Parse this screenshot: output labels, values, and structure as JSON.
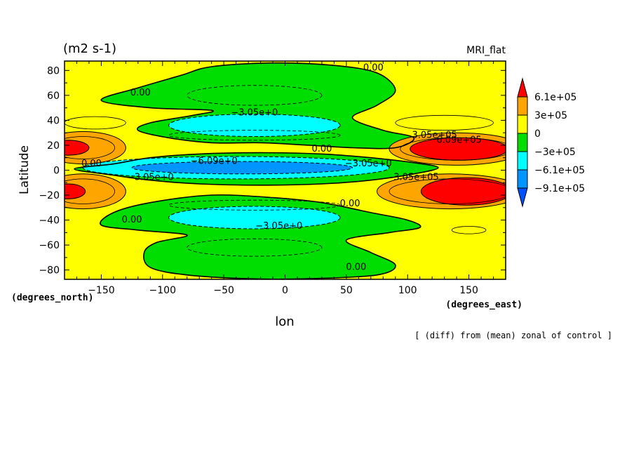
{
  "chart_data": {
    "type": "heatmap",
    "units_label": "(m2 s-1)",
    "model_label": "MRI_flat",
    "xlabel": "lon",
    "ylabel": "Latitude",
    "x_units": "(degrees_east)",
    "y_units": "(degrees_north)",
    "footnote": "[ (diff) from (mean) zonal of control ]",
    "xlim": [
      -180,
      180
    ],
    "ylim": [
      -87.5,
      87.5
    ],
    "x_ticks": [
      -150,
      -100,
      -50,
      0,
      50,
      100,
      150
    ],
    "y_ticks": [
      80,
      60,
      40,
      20,
      0,
      -20,
      -40,
      -60,
      -80
    ],
    "grid": false,
    "legend_position": "right",
    "color_levels": [
      {
        "label": "6.1e+05",
        "color": "#ff0000"
      },
      {
        "label": "3e+05",
        "color": "#ffa500"
      },
      {
        "label": "0",
        "color": "#ffff00"
      },
      {
        "label": "−3e+05",
        "color": "#00dd00"
      },
      {
        "label": "−6.1e+05",
        "color": "#00ffff"
      },
      {
        "label": "−9.1e+05",
        "color": "#0095ff"
      }
    ],
    "colorbar_top_color": "#ff0000",
    "colorbar_bottom_color": "#0050ff",
    "contour_labels": [
      {
        "text": "0.00",
        "lon": 72,
        "lat": 80
      },
      {
        "text": "0.00",
        "lon": -118,
        "lat": 60
      },
      {
        "text": "−3.05e+0",
        "lon": -25,
        "lat": 44
      },
      {
        "text": "3.05e+05",
        "lon": 122,
        "lat": 26
      },
      {
        "text": "6.09e+05",
        "lon": 142,
        "lat": 22
      },
      {
        "text": "0.00",
        "lon": 30,
        "lat": 15
      },
      {
        "text": "−6.09e+0",
        "lon": -58,
        "lat": 5
      },
      {
        "text": "−3.05e+0",
        "lon": 68,
        "lat": 3
      },
      {
        "text": "0.00",
        "lon": -158,
        "lat": 3
      },
      {
        "text": "−3.05e+0",
        "lon": -110,
        "lat": -8
      },
      {
        "text": "3.05e+05",
        "lon": 107,
        "lat": -8
      },
      {
        "text": "0.00",
        "lon": 53,
        "lat": -29
      },
      {
        "text": "0.00",
        "lon": -125,
        "lat": -42
      },
      {
        "text": "−3.05e+0",
        "lon": -5,
        "lat": -47
      },
      {
        "text": "0.00",
        "lon": 58,
        "lat": -80
      }
    ],
    "fields": {
      "comment_free": true,
      "background_level": "0",
      "regions": [
        {
          "level": "−3e+05",
          "shape": "upper-green-band"
        },
        {
          "level": "−3e+05",
          "shape": "lower-green-band"
        },
        {
          "level": "−3e+05",
          "shape": "equatorial-green-band"
        },
        {
          "level": "−6.1e+05",
          "center": [
            -25,
            36
          ],
          "size": [
            70,
            9
          ]
        },
        {
          "level": "−6.1e+05",
          "center": [
            -25,
            -38
          ],
          "size": [
            70,
            9
          ]
        },
        {
          "level": "−6.1e+05",
          "center": [
            -40,
            2
          ],
          "size": [
            125,
            9
          ]
        },
        {
          "level": "−9.1e+05",
          "center": [
            -35,
            2
          ],
          "size": [
            90,
            5
          ]
        },
        {
          "level": "3e+05",
          "center": [
            -165,
            18
          ],
          "size": [
            35,
            13
          ]
        },
        {
          "level": "3e+05",
          "center": [
            -165,
            -17
          ],
          "size": [
            35,
            14
          ]
        },
        {
          "level": "3e+05",
          "center": [
            140,
            17
          ],
          "size": [
            55,
            13
          ]
        },
        {
          "level": "3e+05",
          "center": [
            135,
            -17
          ],
          "size": [
            60,
            14
          ]
        },
        {
          "level": "6.1e+05",
          "center": [
            -177,
            18
          ],
          "size": [
            17,
            6
          ]
        },
        {
          "level": "6.1e+05",
          "center": [
            -177,
            -17
          ],
          "size": [
            14,
            6
          ]
        },
        {
          "level": "6.1e+05",
          "center": [
            142,
            17
          ],
          "size": [
            40,
            9
          ]
        },
        {
          "level": "6.1e+05",
          "center": [
            148,
            -17
          ],
          "size": [
            37,
            11
          ]
        }
      ]
    }
  }
}
